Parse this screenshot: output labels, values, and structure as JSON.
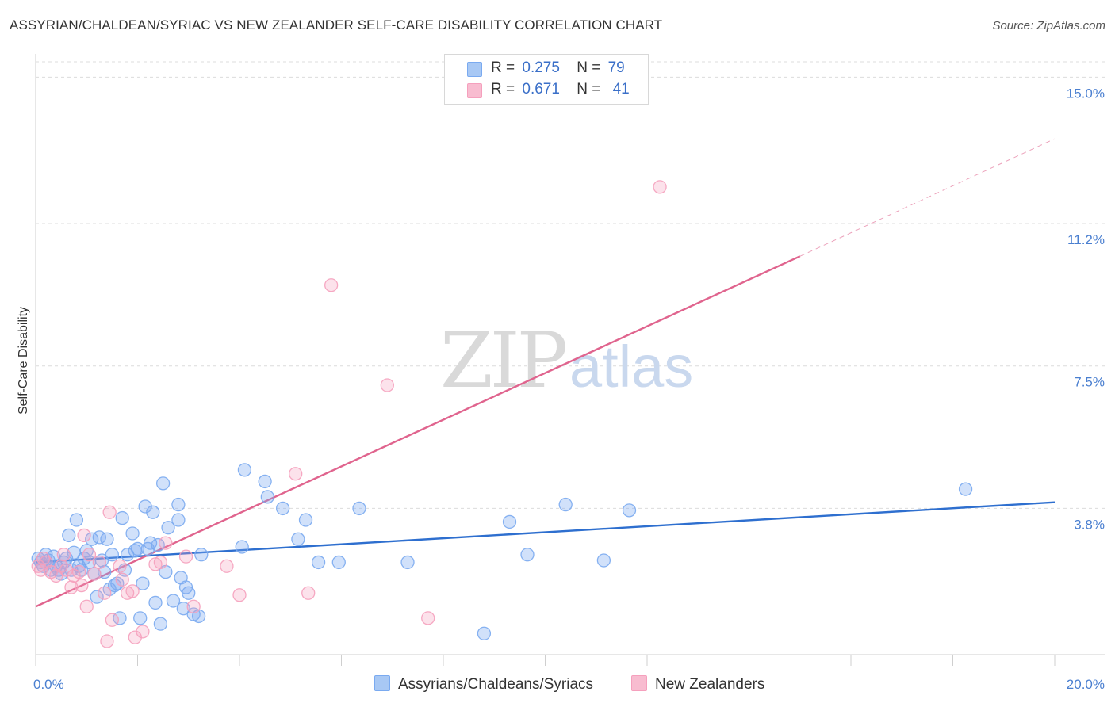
{
  "header": {
    "title": "ASSYRIAN/CHALDEAN/SYRIAC VS NEW ZEALANDER SELF-CARE DISABILITY CORRELATION CHART",
    "source": "Source: ZipAtlas.com"
  },
  "watermark": {
    "zip": "ZIP",
    "atlas": "atlas"
  },
  "legend": {
    "rows": [
      {
        "r_label": "R =",
        "r_value": "0.275",
        "n_label": "N =",
        "n_value": "79",
        "color": "#a8c8f4"
      },
      {
        "r_label": "R =",
        "r_value": "0.671",
        "n_label": "N =",
        "n_value": "41",
        "color": "#f8bcd0"
      }
    ]
  },
  "bottom_legend": {
    "items": [
      {
        "label": "Assyrians/Chaldeans/Syriacs",
        "color": "#a8c8f4"
      },
      {
        "label": "New Zealanders",
        "color": "#f8bcd0"
      }
    ]
  },
  "chart_data": {
    "type": "scatter",
    "title": "ASSYRIAN/CHALDEAN/SYRIAC VS NEW ZEALANDER SELF-CARE DISABILITY CORRELATION CHART",
    "xlabel": "",
    "ylabel": "Self-Care Disability",
    "xlim": [
      0,
      20
    ],
    "ylim": [
      0,
      15.4
    ],
    "x_tick_labels": {
      "min": "0.0%",
      "max": "20.0%"
    },
    "y_ticks": [
      {
        "value": 3.8,
        "label": "3.8%"
      },
      {
        "value": 7.5,
        "label": "7.5%"
      },
      {
        "value": 11.2,
        "label": "11.2%"
      },
      {
        "value": 15.0,
        "label": "15.0%"
      }
    ],
    "series": [
      {
        "name": "Assyrians/Chaldeans/Syriacs",
        "color": "#7aaaf0",
        "line_color": "#2e6fcf",
        "trend": {
          "x0": 0,
          "y0": 2.4,
          "x1": 20,
          "y1": 3.96
        },
        "points": [
          [
            0.05,
            2.5
          ],
          [
            0.1,
            2.4
          ],
          [
            0.15,
            2.3
          ],
          [
            0.2,
            2.6
          ],
          [
            0.25,
            2.45
          ],
          [
            0.3,
            2.2
          ],
          [
            0.35,
            2.55
          ],
          [
            0.4,
            2.3
          ],
          [
            0.45,
            2.2
          ],
          [
            0.5,
            2.1
          ],
          [
            0.55,
            2.4
          ],
          [
            0.6,
            2.5
          ],
          [
            0.65,
            3.1
          ],
          [
            0.7,
            2.2
          ],
          [
            0.75,
            2.65
          ],
          [
            0.8,
            3.5
          ],
          [
            0.85,
            2.3
          ],
          [
            0.9,
            2.2
          ],
          [
            0.95,
            2.5
          ],
          [
            1.0,
            2.7
          ],
          [
            1.05,
            2.4
          ],
          [
            1.1,
            3.0
          ],
          [
            1.15,
            2.1
          ],
          [
            1.2,
            1.5
          ],
          [
            1.25,
            3.05
          ],
          [
            1.3,
            2.45
          ],
          [
            1.35,
            2.15
          ],
          [
            1.4,
            3.0
          ],
          [
            1.45,
            1.7
          ],
          [
            1.5,
            2.6
          ],
          [
            1.55,
            1.8
          ],
          [
            1.6,
            1.85
          ],
          [
            1.65,
            0.95
          ],
          [
            1.7,
            3.55
          ],
          [
            1.75,
            2.2
          ],
          [
            1.8,
            2.6
          ],
          [
            1.9,
            3.15
          ],
          [
            1.95,
            2.7
          ],
          [
            2.0,
            2.75
          ],
          [
            2.05,
            0.95
          ],
          [
            2.1,
            1.85
          ],
          [
            2.15,
            3.85
          ],
          [
            2.2,
            2.75
          ],
          [
            2.25,
            2.9
          ],
          [
            2.3,
            3.7
          ],
          [
            2.35,
            1.35
          ],
          [
            2.4,
            2.85
          ],
          [
            2.45,
            0.8
          ],
          [
            2.5,
            4.45
          ],
          [
            2.55,
            2.15
          ],
          [
            2.6,
            3.3
          ],
          [
            2.7,
            1.4
          ],
          [
            2.8,
            3.5
          ],
          [
            2.8,
            3.9
          ],
          [
            2.85,
            2.0
          ],
          [
            2.9,
            1.2
          ],
          [
            2.95,
            1.75
          ],
          [
            3.0,
            1.6
          ],
          [
            3.1,
            1.05
          ],
          [
            3.2,
            1.0
          ],
          [
            3.25,
            2.6
          ],
          [
            4.1,
            4.8
          ],
          [
            4.5,
            4.5
          ],
          [
            4.55,
            4.1
          ],
          [
            4.85,
            3.8
          ],
          [
            5.15,
            3.0
          ],
          [
            5.3,
            3.5
          ],
          [
            5.55,
            2.4
          ],
          [
            5.95,
            2.4
          ],
          [
            6.35,
            3.8
          ],
          [
            7.3,
            2.4
          ],
          [
            8.8,
            0.55
          ],
          [
            9.3,
            3.45
          ],
          [
            9.65,
            2.6
          ],
          [
            10.4,
            3.9
          ],
          [
            11.15,
            2.45
          ],
          [
            11.65,
            3.75
          ],
          [
            18.25,
            4.3
          ],
          [
            4.05,
            2.8
          ]
        ]
      },
      {
        "name": "New Zealanders",
        "color": "#f5a0bd",
        "line_color": "#e0648e",
        "trend": {
          "x0": 0,
          "y0": 1.25,
          "x1": 15.0,
          "y1": 10.35,
          "dash_x1": 20,
          "dash_y1": 13.4
        },
        "points": [
          [
            0.05,
            2.3
          ],
          [
            0.1,
            2.2
          ],
          [
            0.15,
            2.5
          ],
          [
            0.2,
            2.4
          ],
          [
            0.3,
            2.15
          ],
          [
            0.4,
            2.05
          ],
          [
            0.5,
            2.3
          ],
          [
            0.55,
            2.6
          ],
          [
            0.6,
            2.2
          ],
          [
            0.7,
            1.75
          ],
          [
            0.75,
            2.05
          ],
          [
            0.85,
            2.15
          ],
          [
            0.9,
            1.8
          ],
          [
            0.95,
            3.1
          ],
          [
            1.0,
            1.25
          ],
          [
            1.05,
            2.6
          ],
          [
            1.15,
            2.1
          ],
          [
            1.25,
            2.4
          ],
          [
            1.35,
            1.6
          ],
          [
            1.4,
            0.35
          ],
          [
            1.45,
            3.7
          ],
          [
            1.5,
            0.9
          ],
          [
            1.65,
            2.3
          ],
          [
            1.7,
            1.95
          ],
          [
            1.8,
            1.6
          ],
          [
            1.9,
            1.65
          ],
          [
            1.95,
            0.45
          ],
          [
            2.1,
            0.6
          ],
          [
            2.45,
            2.4
          ],
          [
            2.55,
            2.9
          ],
          [
            2.95,
            2.55
          ],
          [
            3.1,
            1.25
          ],
          [
            3.75,
            2.3
          ],
          [
            4.0,
            1.55
          ],
          [
            5.1,
            4.7
          ],
          [
            5.35,
            1.6
          ],
          [
            5.8,
            9.6
          ],
          [
            6.9,
            7.0
          ],
          [
            7.7,
            0.95
          ],
          [
            12.25,
            12.15
          ],
          [
            2.35,
            2.35
          ]
        ]
      }
    ]
  }
}
